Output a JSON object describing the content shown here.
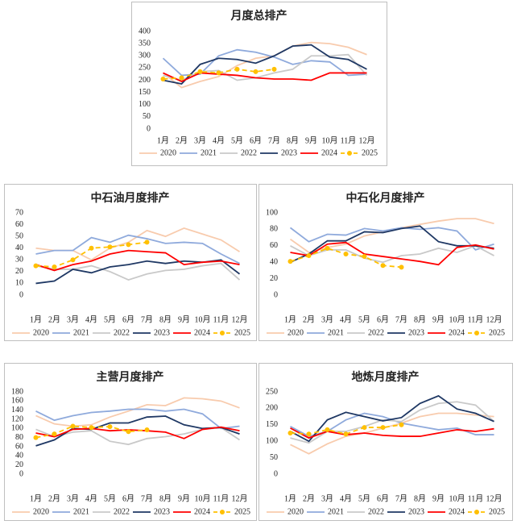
{
  "chart_data": [
    {
      "type": "line",
      "title": "月度总排产",
      "categories": [
        "1月",
        "2月",
        "3月",
        "4月",
        "5月",
        "6月",
        "7月",
        "8月",
        "9月",
        "10月",
        "11月",
        "12月"
      ],
      "ylim": [
        0,
        400
      ],
      "yticks": [
        0,
        50,
        100,
        150,
        200,
        250,
        300,
        350,
        400
      ],
      "series": [
        {
          "name": "2020",
          "color": "#f8cbad",
          "values": [
            230,
            170,
            195,
            215,
            260,
            290,
            300,
            340,
            355,
            350,
            335,
            305
          ]
        },
        {
          "name": "2021",
          "color": "#8faadc",
          "values": [
            290,
            220,
            225,
            300,
            325,
            315,
            295,
            265,
            280,
            275,
            220,
            225
          ]
        },
        {
          "name": "2022",
          "color": "#c9c9c9",
          "values": [
            220,
            200,
            235,
            240,
            200,
            210,
            230,
            245,
            300,
            300,
            305,
            220
          ]
        },
        {
          "name": "2023",
          "color": "#1f3864",
          "values": [
            200,
            185,
            265,
            290,
            285,
            270,
            300,
            340,
            345,
            295,
            285,
            245
          ]
        },
        {
          "name": "2024",
          "color": "#ff0000",
          "values": [
            230,
            195,
            230,
            225,
            220,
            210,
            205,
            205,
            200,
            230,
            230,
            230
          ]
        },
        {
          "name": "2025",
          "color": "#ffc000",
          "dash": true,
          "markers": true,
          "values": [
            205,
            210,
            235,
            230,
            245,
            235,
            245,
            null,
            null,
            null,
            null,
            null
          ]
        }
      ]
    },
    {
      "type": "line",
      "title": "中石油月度排产",
      "categories": [
        "1月",
        "2月",
        "3月",
        "4月",
        "5月",
        "6月",
        "7月",
        "8月",
        "9月",
        "10月",
        "11月",
        "12月"
      ],
      "ylim": [
        0,
        70
      ],
      "yticks": [
        0,
        10,
        20,
        30,
        40,
        50,
        60,
        70
      ],
      "series": [
        {
          "name": "2020",
          "color": "#f8cbad",
          "values": [
            40,
            38,
            38,
            30,
            40,
            45,
            55,
            50,
            57,
            52,
            47,
            37
          ]
        },
        {
          "name": "2021",
          "color": "#8faadc",
          "values": [
            35,
            38,
            38,
            49,
            45,
            51,
            48,
            44,
            45,
            44,
            35,
            27
          ]
        },
        {
          "name": "2022",
          "color": "#c9c9c9",
          "values": [
            25,
            22,
            22,
            25,
            20,
            13,
            18,
            21,
            22,
            25,
            27,
            13
          ]
        },
        {
          "name": "2023",
          "color": "#1f3864",
          "values": [
            10,
            12,
            22,
            19,
            24,
            26,
            29,
            27,
            29,
            28,
            30,
            18
          ]
        },
        {
          "name": "2024",
          "color": "#ff0000",
          "values": [
            26,
            21,
            26,
            29,
            35,
            38,
            37,
            36,
            26,
            28,
            29,
            26
          ]
        },
        {
          "name": "2025",
          "color": "#ffc000",
          "dash": true,
          "markers": true,
          "values": [
            25,
            24,
            30,
            40,
            41,
            43,
            45,
            null,
            null,
            null,
            null,
            null
          ]
        }
      ]
    },
    {
      "type": "line",
      "title": "中石化月度排产",
      "categories": [
        "1月",
        "2月",
        "3月",
        "4月",
        "5月",
        "6月",
        "7月",
        "8月",
        "9月",
        "10月",
        "11月",
        "12月"
      ],
      "ylim": [
        0,
        100
      ],
      "yticks": [
        0,
        20,
        40,
        60,
        80,
        100
      ],
      "series": [
        {
          "name": "2020",
          "color": "#f8cbad",
          "values": [
            68,
            52,
            58,
            62,
            72,
            77,
            82,
            86,
            90,
            93,
            93,
            87
          ]
        },
        {
          "name": "2021",
          "color": "#8faadc",
          "values": [
            82,
            65,
            74,
            73,
            81,
            78,
            82,
            80,
            82,
            78,
            55,
            62
          ]
        },
        {
          "name": "2022",
          "color": "#c9c9c9",
          "values": [
            60,
            48,
            55,
            55,
            45,
            40,
            48,
            50,
            57,
            52,
            60,
            48
          ]
        },
        {
          "name": "2023",
          "color": "#1f3864",
          "values": [
            40,
            50,
            66,
            66,
            77,
            76,
            81,
            84,
            65,
            60,
            60,
            57
          ]
        },
        {
          "name": "2024",
          "color": "#ff0000",
          "values": [
            52,
            48,
            62,
            64,
            50,
            47,
            44,
            41,
            37,
            58,
            61,
            56
          ]
        },
        {
          "name": "2025",
          "color": "#ffc000",
          "dash": true,
          "markers": true,
          "values": [
            41,
            48,
            57,
            50,
            47,
            36,
            34,
            null,
            null,
            null,
            null,
            null
          ]
        }
      ]
    },
    {
      "type": "line",
      "title": "主营月度排产",
      "categories": [
        "1月",
        "2月",
        "3月",
        "4月",
        "5月",
        "6月",
        "7月",
        "8月",
        "9月",
        "10月",
        "11月",
        "12月"
      ],
      "ylim": [
        0,
        180
      ],
      "yticks": [
        0,
        20,
        40,
        60,
        80,
        100,
        120,
        140,
        160,
        180
      ],
      "series": [
        {
          "name": "2020",
          "color": "#f8cbad",
          "values": [
            128,
            110,
            105,
            108,
            125,
            138,
            152,
            150,
            167,
            165,
            160,
            145
          ]
        },
        {
          "name": "2021",
          "color": "#8faadc",
          "values": [
            138,
            118,
            128,
            135,
            138,
            142,
            142,
            138,
            142,
            132,
            100,
            105
          ]
        },
        {
          "name": "2022",
          "color": "#c9c9c9",
          "values": [
            98,
            82,
            92,
            95,
            72,
            65,
            78,
            82,
            88,
            98,
            102,
            75
          ]
        },
        {
          "name": "2023",
          "color": "#1f3864",
          "values": [
            62,
            75,
            100,
            98,
            112,
            112,
            125,
            127,
            108,
            100,
            102,
            88
          ]
        },
        {
          "name": "2024",
          "color": "#ff0000",
          "values": [
            90,
            82,
            98,
            100,
            95,
            97,
            95,
            92,
            78,
            98,
            103,
            95
          ]
        },
        {
          "name": "2025",
          "color": "#ffc000",
          "dash": true,
          "markers": true,
          "values": [
            80,
            88,
            105,
            102,
            104,
            93,
            97,
            null,
            null,
            null,
            null,
            null
          ]
        }
      ]
    },
    {
      "type": "line",
      "title": "地炼月度排产",
      "categories": [
        "1月",
        "2月",
        "3月",
        "4月",
        "5月",
        "6月",
        "7月",
        "8月",
        "9月",
        "10月",
        "11月",
        "12月"
      ],
      "ylim": [
        0,
        250
      ],
      "yticks": [
        0,
        50,
        100,
        150,
        200,
        250
      ],
      "series": [
        {
          "name": "2020",
          "color": "#f8cbad",
          "values": [
            90,
            62,
            92,
            115,
            125,
            140,
            155,
            175,
            185,
            185,
            180,
            175
          ]
        },
        {
          "name": "2021",
          "color": "#8faadc",
          "values": [
            145,
            115,
            130,
            165,
            185,
            175,
            155,
            145,
            135,
            140,
            120,
            120
          ]
        },
        {
          "name": "2022",
          "color": "#c9c9c9",
          "values": [
            110,
            95,
            130,
            130,
            145,
            165,
            160,
            195,
            215,
            220,
            210,
            160
          ]
        },
        {
          "name": "2023",
          "color": "#1f3864",
          "values": [
            130,
            100,
            165,
            188,
            175,
            162,
            172,
            215,
            238,
            198,
            185,
            160
          ]
        },
        {
          "name": "2024",
          "color": "#ff0000",
          "values": [
            140,
            110,
            130,
            120,
            125,
            118,
            115,
            115,
            125,
            135,
            130,
            138
          ]
        },
        {
          "name": "2025",
          "color": "#ffc000",
          "dash": true,
          "markers": true,
          "values": [
            125,
            122,
            135,
            122,
            142,
            142,
            150,
            null,
            null,
            null,
            null,
            null
          ]
        }
      ]
    }
  ]
}
